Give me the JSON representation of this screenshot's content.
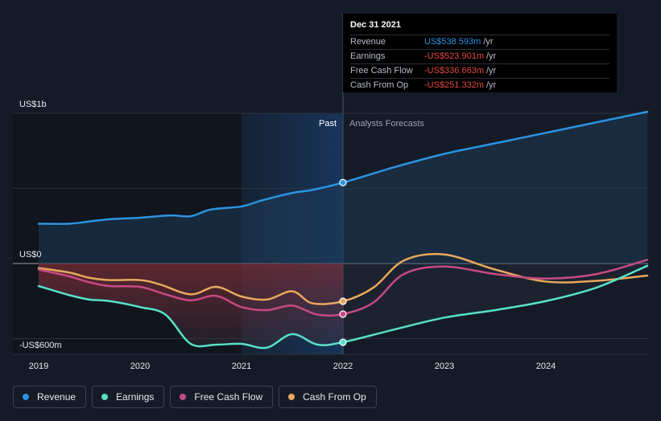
{
  "chart_data": {
    "type": "line",
    "y_ticks": [
      "US$1b",
      "US$0",
      "-US$600m"
    ],
    "x_ticks": [
      "2019",
      "2020",
      "2021",
      "2022",
      "2023",
      "2024"
    ],
    "past_label": "Past",
    "forecast_label": "Analysts Forecasts",
    "grid": true,
    "legend_position": "bottom-left",
    "series": [
      {
        "name": "Revenue",
        "color": "#2b94e1",
        "points": [
          [
            2019.0,
            265
          ],
          [
            2019.3,
            265
          ],
          [
            2019.5,
            280
          ],
          [
            2019.7,
            295
          ],
          [
            2020.0,
            305
          ],
          [
            2020.3,
            320
          ],
          [
            2020.5,
            315
          ],
          [
            2020.7,
            360
          ],
          [
            2021.0,
            380
          ],
          [
            2021.2,
            420
          ],
          [
            2021.5,
            470
          ],
          [
            2021.7,
            490
          ],
          [
            2022.0,
            538.6
          ],
          [
            2022.5,
            640
          ],
          [
            2023.0,
            730
          ],
          [
            2023.5,
            800
          ],
          [
            2024.0,
            870
          ],
          [
            2024.5,
            940
          ],
          [
            2025.0,
            1010
          ]
        ]
      },
      {
        "name": "Earnings",
        "color": "#58e0c8",
        "points": [
          [
            2019.0,
            -150
          ],
          [
            2019.3,
            -210
          ],
          [
            2019.5,
            -240
          ],
          [
            2019.7,
            -250
          ],
          [
            2020.0,
            -290
          ],
          [
            2020.25,
            -340
          ],
          [
            2020.5,
            -535
          ],
          [
            2020.75,
            -540
          ],
          [
            2021.0,
            -535
          ],
          [
            2021.25,
            -560
          ],
          [
            2021.5,
            -470
          ],
          [
            2021.75,
            -540
          ],
          [
            2022.0,
            -523.9
          ],
          [
            2022.5,
            -440
          ],
          [
            2023.0,
            -360
          ],
          [
            2023.5,
            -310
          ],
          [
            2024.0,
            -250
          ],
          [
            2024.5,
            -160
          ],
          [
            2025.0,
            -15
          ]
        ]
      },
      {
        "name": "Free Cash Flow",
        "color": "#c84a84",
        "points": [
          [
            2019.0,
            -40
          ],
          [
            2019.3,
            -85
          ],
          [
            2019.5,
            -125
          ],
          [
            2019.7,
            -150
          ],
          [
            2020.0,
            -155
          ],
          [
            2020.25,
            -205
          ],
          [
            2020.5,
            -245
          ],
          [
            2020.75,
            -215
          ],
          [
            2021.0,
            -290
          ],
          [
            2021.25,
            -310
          ],
          [
            2021.5,
            -280
          ],
          [
            2021.75,
            -340
          ],
          [
            2022.0,
            -336.7
          ],
          [
            2022.3,
            -260
          ],
          [
            2022.6,
            -70
          ],
          [
            2023.0,
            -20
          ],
          [
            2023.5,
            -70
          ],
          [
            2024.0,
            -100
          ],
          [
            2024.5,
            -70
          ],
          [
            2025.0,
            25
          ]
        ]
      },
      {
        "name": "Cash From Op",
        "color": "#e8a85c",
        "points": [
          [
            2019.0,
            -30
          ],
          [
            2019.3,
            -60
          ],
          [
            2019.5,
            -95
          ],
          [
            2019.7,
            -110
          ],
          [
            2020.0,
            -110
          ],
          [
            2020.2,
            -140
          ],
          [
            2020.5,
            -205
          ],
          [
            2020.75,
            -155
          ],
          [
            2021.0,
            -220
          ],
          [
            2021.25,
            -240
          ],
          [
            2021.5,
            -185
          ],
          [
            2021.7,
            -265
          ],
          [
            2022.0,
            -251.3
          ],
          [
            2022.3,
            -160
          ],
          [
            2022.6,
            20
          ],
          [
            2023.0,
            60
          ],
          [
            2023.5,
            -40
          ],
          [
            2024.0,
            -120
          ],
          [
            2024.5,
            -115
          ],
          [
            2025.0,
            -80
          ]
        ]
      }
    ],
    "highlight_x": 2022.0,
    "tooltip": {
      "date": "Dec 31 2021",
      "rows": [
        {
          "label": "Revenue",
          "value": "US$538.593m",
          "unit": "/yr",
          "color": "#2b94e1"
        },
        {
          "label": "Earnings",
          "value": "-US$523.901m",
          "unit": "/yr",
          "color": "#e8473f"
        },
        {
          "label": "Free Cash Flow",
          "value": "-US$336.663m",
          "unit": "/yr",
          "color": "#e8473f"
        },
        {
          "label": "Cash From Op",
          "value": "-US$251.332m",
          "unit": "/yr",
          "color": "#e8473f"
        }
      ]
    }
  },
  "legend": [
    {
      "label": "Revenue",
      "color": "#2b94e1"
    },
    {
      "label": "Earnings",
      "color": "#58e0c8"
    },
    {
      "label": "Free Cash Flow",
      "color": "#c84a84"
    },
    {
      "label": "Cash From Op",
      "color": "#e8a85c"
    }
  ]
}
